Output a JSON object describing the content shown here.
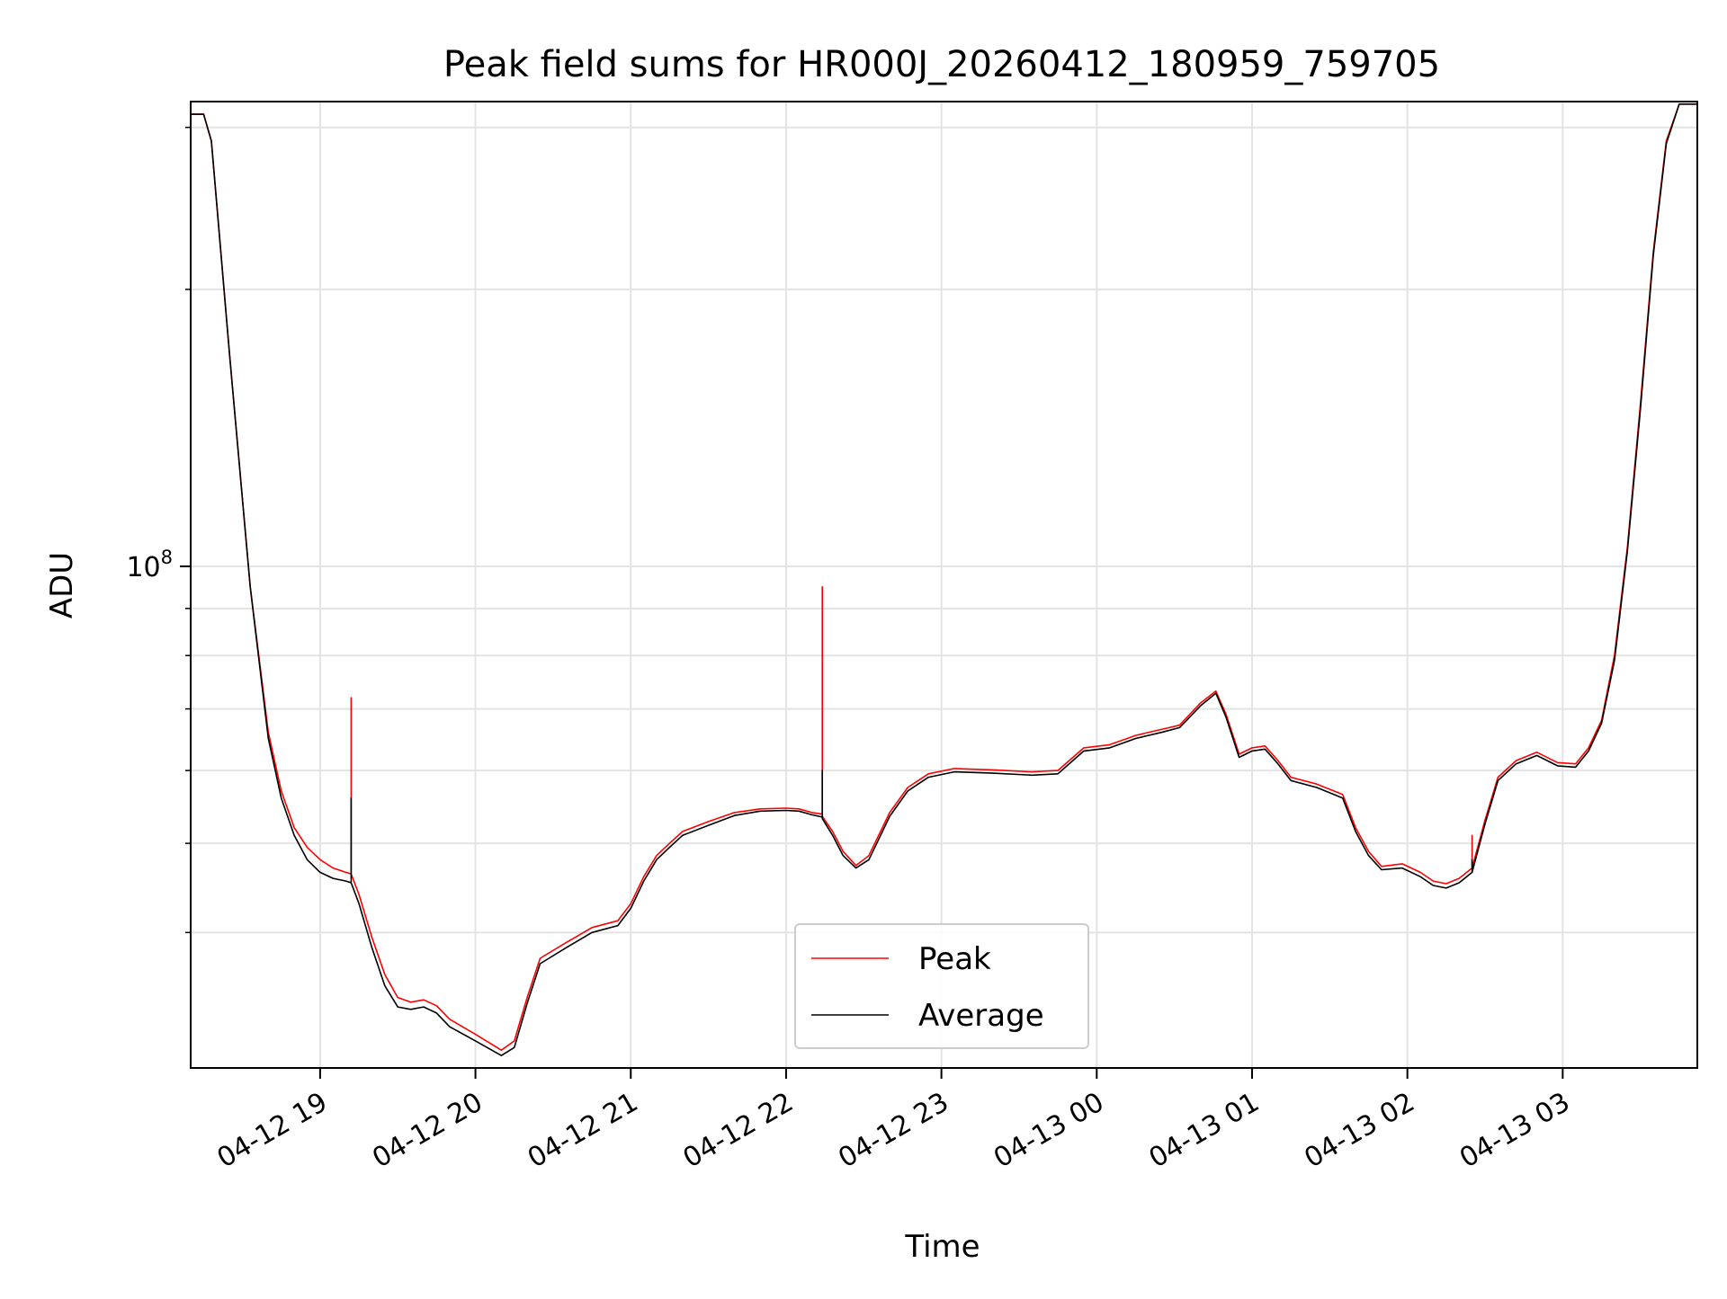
{
  "chart_data": {
    "type": "line",
    "title": "Peak field sums for HR000J_20260412_180959_759705",
    "xlabel": "Time",
    "ylabel": "ADU",
    "yscale": "log",
    "grid": true,
    "legend_position": "lower center",
    "xlim": [
      "2026-04-12 18:10",
      "2026-04-13 03:52"
    ],
    "ylim": [
      28500000,
      320000000
    ],
    "x_ticks": [
      {
        "time": "2026-04-12 19:00",
        "label": "04-12 19"
      },
      {
        "time": "2026-04-12 20:00",
        "label": "04-12 20"
      },
      {
        "time": "2026-04-12 21:00",
        "label": "04-12 21"
      },
      {
        "time": "2026-04-12 22:00",
        "label": "04-12 22"
      },
      {
        "time": "2026-04-12 23:00",
        "label": "04-12 23"
      },
      {
        "time": "2026-04-13 00:00",
        "label": "04-13 00"
      },
      {
        "time": "2026-04-13 01:00",
        "label": "04-13 01"
      },
      {
        "time": "2026-04-13 02:00",
        "label": "04-13 02"
      },
      {
        "time": "2026-04-13 03:00",
        "label": "04-13 03"
      }
    ],
    "y_ticks": [
      {
        "value": 100000000,
        "base": "10",
        "exponent": "8"
      }
    ],
    "y_minor_ticks": [
      40000000,
      50000000,
      60000000,
      70000000,
      80000000,
      90000000,
      200000000,
      300000000
    ],
    "series": [
      {
        "name": "Peak",
        "color": "#ff0000",
        "points": [
          [
            "2026-04-12 18:10",
            310000000
          ],
          [
            "2026-04-12 18:15",
            310000000
          ],
          [
            "2026-04-12 18:18",
            290000000
          ],
          [
            "2026-04-12 18:25",
            170000000
          ],
          [
            "2026-04-12 18:33",
            95000000
          ],
          [
            "2026-04-12 18:40",
            66000000
          ],
          [
            "2026-04-12 18:45",
            57000000
          ],
          [
            "2026-04-12 18:50",
            52000000
          ],
          [
            "2026-04-12 18:55",
            49500000
          ],
          [
            "2026-04-12 19:00",
            48000000
          ],
          [
            "2026-04-12 19:05",
            47000000
          ],
          [
            "2026-04-12 19:10",
            46500000
          ],
          [
            "2026-04-12 19:12",
            46300000
          ],
          [
            "2026-04-12 19:12",
            72000000
          ],
          [
            "2026-04-12 19:12",
            46300000
          ],
          [
            "2026-04-12 19:15",
            44000000
          ],
          [
            "2026-04-12 19:20",
            39500000
          ],
          [
            "2026-04-12 19:25",
            36000000
          ],
          [
            "2026-04-12 19:30",
            34000000
          ],
          [
            "2026-04-12 19:35",
            33600000
          ],
          [
            "2026-04-12 19:40",
            33800000
          ],
          [
            "2026-04-12 19:45",
            33300000
          ],
          [
            "2026-04-12 19:50",
            32200000
          ],
          [
            "2026-04-12 20:00",
            31000000
          ],
          [
            "2026-04-12 20:10",
            29800000
          ],
          [
            "2026-04-12 20:15",
            30500000
          ],
          [
            "2026-04-12 20:20",
            34000000
          ],
          [
            "2026-04-12 20:25",
            37500000
          ],
          [
            "2026-04-12 20:35",
            39000000
          ],
          [
            "2026-04-12 20:45",
            40500000
          ],
          [
            "2026-04-12 20:55",
            41200000
          ],
          [
            "2026-04-12 21:00",
            43000000
          ],
          [
            "2026-04-12 21:05",
            46000000
          ],
          [
            "2026-04-12 21:10",
            48500000
          ],
          [
            "2026-04-12 21:15",
            50000000
          ],
          [
            "2026-04-12 21:20",
            51500000
          ],
          [
            "2026-04-12 21:30",
            52800000
          ],
          [
            "2026-04-12 21:40",
            54000000
          ],
          [
            "2026-04-12 21:50",
            54500000
          ],
          [
            "2026-04-12 22:00",
            54600000
          ],
          [
            "2026-04-12 22:05",
            54500000
          ],
          [
            "2026-04-12 22:10",
            54000000
          ],
          [
            "2026-04-12 22:14",
            53800000
          ],
          [
            "2026-04-12 22:14",
            95000000
          ],
          [
            "2026-04-12 22:14",
            53500000
          ],
          [
            "2026-04-12 22:18",
            51500000
          ],
          [
            "2026-04-12 22:22",
            49000000
          ],
          [
            "2026-04-12 22:27",
            47300000
          ],
          [
            "2026-04-12 22:32",
            48500000
          ],
          [
            "2026-04-12 22:40",
            54000000
          ],
          [
            "2026-04-12 22:47",
            57500000
          ],
          [
            "2026-04-12 22:55",
            59500000
          ],
          [
            "2026-04-12 23:05",
            60300000
          ],
          [
            "2026-04-12 23:20",
            60100000
          ],
          [
            "2026-04-12 23:35",
            59800000
          ],
          [
            "2026-04-12 23:45",
            60000000
          ],
          [
            "2026-04-12 23:55",
            63500000
          ],
          [
            "2026-04-13 00:05",
            64000000
          ],
          [
            "2026-04-13 00:15",
            65500000
          ],
          [
            "2026-04-13 00:25",
            66500000
          ],
          [
            "2026-04-13 00:32",
            67200000
          ],
          [
            "2026-04-13 00:40",
            71000000
          ],
          [
            "2026-04-13 00:46",
            73200000
          ],
          [
            "2026-04-13 00:50",
            69000000
          ],
          [
            "2026-04-13 00:55",
            62500000
          ],
          [
            "2026-04-13 01:00",
            63500000
          ],
          [
            "2026-04-13 01:05",
            63800000
          ],
          [
            "2026-04-13 01:10",
            61500000
          ],
          [
            "2026-04-13 01:15",
            59000000
          ],
          [
            "2026-04-13 01:25",
            58000000
          ],
          [
            "2026-04-13 01:35",
            56500000
          ],
          [
            "2026-04-13 01:40",
            52000000
          ],
          [
            "2026-04-13 01:45",
            49000000
          ],
          [
            "2026-04-13 01:50",
            47200000
          ],
          [
            "2026-04-13 01:58",
            47500000
          ],
          [
            "2026-04-13 02:05",
            46500000
          ],
          [
            "2026-04-13 02:10",
            45500000
          ],
          [
            "2026-04-13 02:15",
            45200000
          ],
          [
            "2026-04-13 02:20",
            45800000
          ],
          [
            "2026-04-13 02:25",
            47000000
          ],
          [
            "2026-04-13 02:25",
            51000000
          ],
          [
            "2026-04-13 02:25",
            47000000
          ],
          [
            "2026-04-13 02:30",
            53000000
          ],
          [
            "2026-04-13 02:35",
            59000000
          ],
          [
            "2026-04-13 02:42",
            61500000
          ],
          [
            "2026-04-13 02:50",
            62800000
          ],
          [
            "2026-04-13 02:58",
            61200000
          ],
          [
            "2026-04-13 03:05",
            61000000
          ],
          [
            "2026-04-13 03:10",
            63500000
          ],
          [
            "2026-04-13 03:15",
            68000000
          ],
          [
            "2026-04-13 03:20",
            80000000
          ],
          [
            "2026-04-13 03:25",
            105000000
          ],
          [
            "2026-04-13 03:30",
            150000000
          ],
          [
            "2026-04-13 03:35",
            220000000
          ],
          [
            "2026-04-13 03:40",
            290000000
          ],
          [
            "2026-04-13 03:45",
            318000000
          ],
          [
            "2026-04-13 03:52",
            318000000
          ]
        ]
      },
      {
        "name": "Average",
        "color": "#000000",
        "points": [
          [
            "2026-04-12 18:10",
            310000000
          ],
          [
            "2026-04-12 18:15",
            310000000
          ],
          [
            "2026-04-12 18:18",
            290000000
          ],
          [
            "2026-04-12 18:25",
            170000000
          ],
          [
            "2026-04-12 18:33",
            95000000
          ],
          [
            "2026-04-12 18:40",
            65000000
          ],
          [
            "2026-04-12 18:45",
            56000000
          ],
          [
            "2026-04-12 18:50",
            51000000
          ],
          [
            "2026-04-12 18:55",
            48000000
          ],
          [
            "2026-04-12 19:00",
            46500000
          ],
          [
            "2026-04-12 19:05",
            45800000
          ],
          [
            "2026-04-12 19:10",
            45500000
          ],
          [
            "2026-04-12 19:12",
            45300000
          ],
          [
            "2026-04-12 19:12",
            56000000
          ],
          [
            "2026-04-12 19:12",
            45300000
          ],
          [
            "2026-04-12 19:15",
            43000000
          ],
          [
            "2026-04-12 19:20",
            38500000
          ],
          [
            "2026-04-12 19:25",
            35000000
          ],
          [
            "2026-04-12 19:30",
            33200000
          ],
          [
            "2026-04-12 19:35",
            33000000
          ],
          [
            "2026-04-12 19:40",
            33200000
          ],
          [
            "2026-04-12 19:45",
            32700000
          ],
          [
            "2026-04-12 19:50",
            31600000
          ],
          [
            "2026-04-12 20:00",
            30500000
          ],
          [
            "2026-04-12 20:10",
            29400000
          ],
          [
            "2026-04-12 20:15",
            30000000
          ],
          [
            "2026-04-12 20:20",
            33500000
          ],
          [
            "2026-04-12 20:25",
            37000000
          ],
          [
            "2026-04-12 20:35",
            38500000
          ],
          [
            "2026-04-12 20:45",
            40000000
          ],
          [
            "2026-04-12 20:55",
            40700000
          ],
          [
            "2026-04-12 21:00",
            42500000
          ],
          [
            "2026-04-12 21:05",
            45500000
          ],
          [
            "2026-04-12 21:10",
            48000000
          ],
          [
            "2026-04-12 21:15",
            49500000
          ],
          [
            "2026-04-12 21:20",
            51000000
          ],
          [
            "2026-04-12 21:30",
            52300000
          ],
          [
            "2026-04-12 21:40",
            53600000
          ],
          [
            "2026-04-12 21:50",
            54200000
          ],
          [
            "2026-04-12 22:00",
            54300000
          ],
          [
            "2026-04-12 22:05",
            54200000
          ],
          [
            "2026-04-12 22:10",
            53700000
          ],
          [
            "2026-04-12 22:14",
            53400000
          ],
          [
            "2026-04-12 22:14",
            60000000
          ],
          [
            "2026-04-12 22:14",
            53200000
          ],
          [
            "2026-04-12 22:18",
            51000000
          ],
          [
            "2026-04-12 22:22",
            48500000
          ],
          [
            "2026-04-12 22:27",
            47000000
          ],
          [
            "2026-04-12 22:32",
            48000000
          ],
          [
            "2026-04-12 22:40",
            53500000
          ],
          [
            "2026-04-12 22:47",
            57000000
          ],
          [
            "2026-04-12 22:55",
            59000000
          ],
          [
            "2026-04-12 23:05",
            59800000
          ],
          [
            "2026-04-12 23:20",
            59600000
          ],
          [
            "2026-04-12 23:35",
            59300000
          ],
          [
            "2026-04-12 23:45",
            59500000
          ],
          [
            "2026-04-12 23:55",
            63000000
          ],
          [
            "2026-04-13 00:05",
            63500000
          ],
          [
            "2026-04-13 00:15",
            65000000
          ],
          [
            "2026-04-13 00:25",
            66000000
          ],
          [
            "2026-04-13 00:32",
            66800000
          ],
          [
            "2026-04-13 00:40",
            70500000
          ],
          [
            "2026-04-13 00:46",
            72800000
          ],
          [
            "2026-04-13 00:50",
            68500000
          ],
          [
            "2026-04-13 00:55",
            62000000
          ],
          [
            "2026-04-13 01:00",
            63000000
          ],
          [
            "2026-04-13 01:05",
            63300000
          ],
          [
            "2026-04-13 01:10",
            61000000
          ],
          [
            "2026-04-13 01:15",
            58500000
          ],
          [
            "2026-04-13 01:25",
            57500000
          ],
          [
            "2026-04-13 01:35",
            56000000
          ],
          [
            "2026-04-13 01:40",
            51500000
          ],
          [
            "2026-04-13 01:45",
            48500000
          ],
          [
            "2026-04-13 01:50",
            46800000
          ],
          [
            "2026-04-13 01:58",
            47000000
          ],
          [
            "2026-04-13 02:05",
            46000000
          ],
          [
            "2026-04-13 02:10",
            45000000
          ],
          [
            "2026-04-13 02:15",
            44700000
          ],
          [
            "2026-04-13 02:20",
            45300000
          ],
          [
            "2026-04-13 02:25",
            46500000
          ],
          [
            "2026-04-13 02:25",
            48000000
          ],
          [
            "2026-04-13 02:25",
            46500000
          ],
          [
            "2026-04-13 02:30",
            52500000
          ],
          [
            "2026-04-13 02:35",
            58500000
          ],
          [
            "2026-04-13 02:42",
            61000000
          ],
          [
            "2026-04-13 02:50",
            62300000
          ],
          [
            "2026-04-13 02:58",
            60700000
          ],
          [
            "2026-04-13 03:05",
            60500000
          ],
          [
            "2026-04-13 03:10",
            63000000
          ],
          [
            "2026-04-13 03:15",
            67500000
          ],
          [
            "2026-04-13 03:20",
            79000000
          ],
          [
            "2026-04-13 03:25",
            104000000
          ],
          [
            "2026-04-13 03:30",
            148000000
          ],
          [
            "2026-04-13 03:35",
            218000000
          ],
          [
            "2026-04-13 03:40",
            288000000
          ],
          [
            "2026-04-13 03:45",
            318000000
          ],
          [
            "2026-04-13 03:52",
            318000000
          ]
        ]
      }
    ]
  }
}
